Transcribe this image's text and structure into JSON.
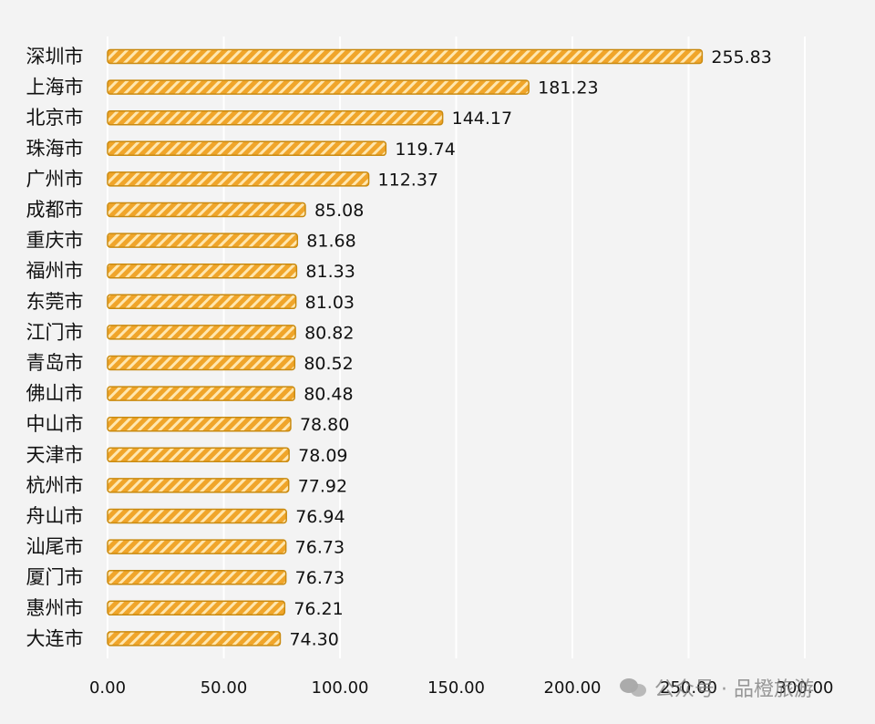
{
  "colors": {
    "bar_fill": "#f0a52a",
    "bar_stripe": "#ffe7b0",
    "bar_edge": "#c98a10",
    "background": "#f3f3f3",
    "gridline": "#ffffff"
  },
  "watermark": {
    "text": "公众号 · 品橙旅游",
    "icon": "wechat-icon"
  },
  "chart_data": {
    "type": "bar",
    "orientation": "horizontal",
    "title": "",
    "xlabel": "",
    "ylabel": "",
    "xlim": [
      0,
      300
    ],
    "xticks": [
      "0.00",
      "50.00",
      "100.00",
      "150.00",
      "200.00",
      "250.00",
      "300.00"
    ],
    "grid": true,
    "legend": "none",
    "categories": [
      "深圳市",
      "上海市",
      "北京市",
      "珠海市",
      "广州市",
      "成都市",
      "重庆市",
      "福州市",
      "东莞市",
      "江门市",
      "青岛市",
      "佛山市",
      "中山市",
      "天津市",
      "杭州市",
      "舟山市",
      "汕尾市",
      "厦门市",
      "惠州市",
      "大连市"
    ],
    "values": [
      255.83,
      181.23,
      144.17,
      119.74,
      112.37,
      85.08,
      81.68,
      81.33,
      81.03,
      80.82,
      80.52,
      80.48,
      78.8,
      78.09,
      77.92,
      76.94,
      76.73,
      76.73,
      76.21,
      74.3
    ],
    "value_labels": [
      "255.83",
      "181.23",
      "144.17",
      "119.74",
      "112.37",
      "85.08",
      "81.68",
      "81.33",
      "81.03",
      "80.82",
      "80.52",
      "80.48",
      "78.80",
      "78.09",
      "77.92",
      "76.94",
      "76.73",
      "76.73",
      "76.21",
      "74.30"
    ]
  }
}
